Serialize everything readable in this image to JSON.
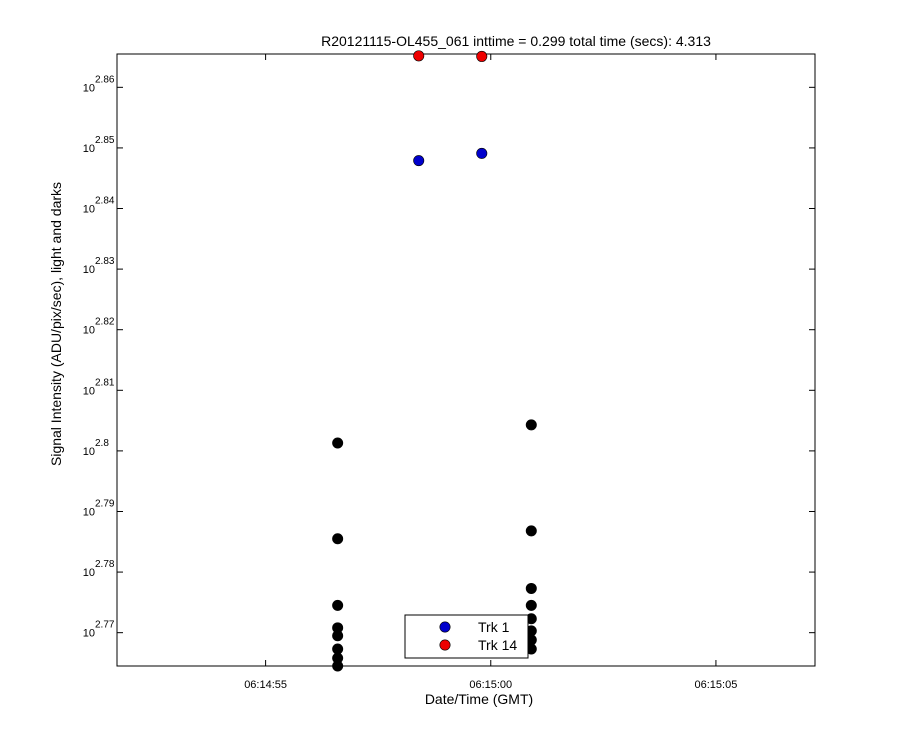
{
  "chart_data": {
    "type": "scatter",
    "title": "R20121115-OL455_061 inttime = 0.299 total time (secs): 4.313",
    "xlabel": "Date/Time (GMT)",
    "ylabel": "Signal Intensity (ADU/pix/sec), light and darks",
    "x_ticks": [
      "06:14:55",
      "06:15:00",
      "06:15:05"
    ],
    "x_tick_seconds": [
      55,
      60,
      65
    ],
    "x_range_seconds": [
      51.7,
      67.2
    ],
    "y_scale": "log10",
    "y_tick_base": "10",
    "y_tick_exponents": [
      "2.77",
      "2.78",
      "2.79",
      "2.8",
      "2.81",
      "2.82",
      "2.83",
      "2.84",
      "2.85",
      "2.86"
    ],
    "y_range_exponent": [
      2.7645,
      2.8655
    ],
    "grid": false,
    "legend_position": "bottom-center",
    "series": [
      {
        "name": "Trk 1",
        "color": "#0000cc",
        "points": [
          [
            58.4,
            2.8479
          ],
          [
            59.8,
            2.8491
          ]
        ]
      },
      {
        "name": "Trk 14",
        "color": "#ee0000",
        "points": [
          [
            58.4,
            2.8652
          ],
          [
            59.8,
            2.8651
          ]
        ]
      },
      {
        "name": "",
        "color": "#000000",
        "points": [
          [
            56.6,
            2.8013
          ],
          [
            56.6,
            2.7855
          ],
          [
            56.6,
            2.7745
          ],
          [
            56.6,
            2.7708
          ],
          [
            56.6,
            2.7695
          ],
          [
            56.6,
            2.7673
          ],
          [
            56.6,
            2.7658
          ],
          [
            56.6,
            2.7645
          ],
          [
            60.9,
            2.8043
          ],
          [
            60.9,
            2.7868
          ],
          [
            60.9,
            2.7773
          ],
          [
            60.9,
            2.7745
          ],
          [
            60.9,
            2.7723
          ],
          [
            60.9,
            2.7703
          ],
          [
            60.9,
            2.7688
          ],
          [
            60.9,
            2.7673
          ]
        ]
      }
    ]
  }
}
